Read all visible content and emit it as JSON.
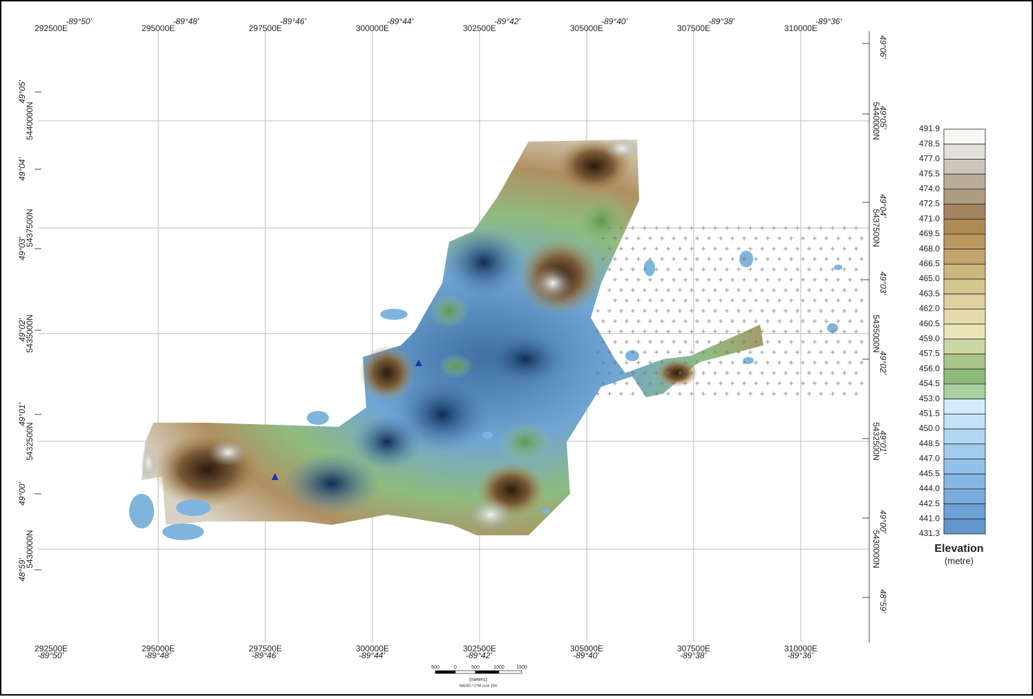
{
  "grid": {
    "eastings": [
      "292500E",
      "295000E",
      "297500E",
      "300000E",
      "302500E",
      "305000E",
      "307500E",
      "310000E"
    ],
    "longitudes": [
      "-89°50'",
      "-89°48'",
      "-89°46'",
      "-89°44'",
      "-89°42'",
      "-89°40'",
      "-89°38'",
      "-89°36'"
    ],
    "northings": [
      "5440000N",
      "5437500N",
      "5435000N",
      "5432500N",
      "5430000N"
    ],
    "latitudes_left": [
      "49°05'",
      "49°04'",
      "49°03'",
      "49°02'",
      "49°01'",
      "49°00'",
      "48°59'"
    ],
    "latitudes_right": [
      "49°06'",
      "49°05'",
      "49°04'",
      "49°03'",
      "49°02'",
      "49°01'",
      "49°00'",
      "48°59'"
    ]
  },
  "legend": {
    "title": "Elevation",
    "units": "(metre)",
    "levels": [
      "491.9",
      "478.5",
      "477.0",
      "475.5",
      "474.0",
      "472.5",
      "471.0",
      "469.5",
      "468.0",
      "466.5",
      "465.0",
      "463.5",
      "462.0",
      "460.5",
      "459.0",
      "457.5",
      "456.0",
      "454.5",
      "453.0",
      "451.5",
      "450.0",
      "448.5",
      "447.0",
      "445.5",
      "444.0",
      "442.5",
      "441.0",
      "431.3"
    ]
  },
  "scale_bar": {
    "ticks": [
      "500",
      "0",
      "500",
      "1000",
      "1500"
    ],
    "units": "(meters)",
    "projection": "NAD83 / UTM zone 15N"
  }
}
